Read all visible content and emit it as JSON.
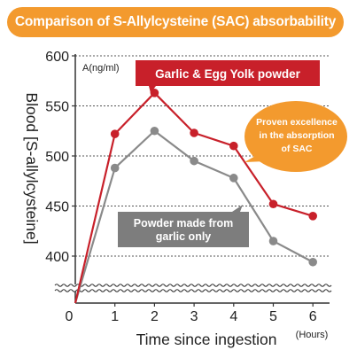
{
  "title": "Comparison of S-Allylcysteine (SAC) absorbability",
  "colors": {
    "title_bg": "#f39a2e",
    "garlic_egg": "#c8202a",
    "garlic_only": "#8a8a8a",
    "callout_orange": "#f39a2e",
    "callout_gray": "#7d7d7d"
  },
  "chart_data": {
    "type": "line",
    "title": "Comparison of S-Allylcysteine (SAC) absorbability",
    "xlabel": "Time since ingestion",
    "x_unit": "(Hours)",
    "ylabel": "Blood [S-allylcysteine]",
    "y_unit": "A(ng/ml)",
    "x": [
      0,
      1,
      2,
      3,
      4,
      5,
      6
    ],
    "x_tick_labels": [
      "0",
      "1",
      "2",
      "3",
      "4",
      "5",
      "6"
    ],
    "y_ticks": [
      400,
      450,
      500,
      550,
      600
    ],
    "y_tick_labels": [
      "400",
      "450",
      "500",
      "550",
      "600"
    ],
    "ylim": [
      360,
      600
    ],
    "y_axis_break": true,
    "grid": "dashed horizontal",
    "series": [
      {
        "name": "Garlic & Egg Yolk powder",
        "color": "#c8202a",
        "values": [
          362,
          522,
          563,
          523,
          510,
          452,
          440
        ]
      },
      {
        "name": "Powder made from garlic only",
        "color": "#8a8a8a",
        "values": [
          362,
          488,
          525,
          495,
          478,
          415,
          394
        ]
      }
    ],
    "annotations": {
      "red_legend_box": "Garlic & Egg Yolk powder",
      "orange_bubble": [
        "Proven excellence",
        "in the absorption",
        "of SAC"
      ],
      "gray_box": [
        "Powder made from",
        "garlic only"
      ]
    }
  }
}
